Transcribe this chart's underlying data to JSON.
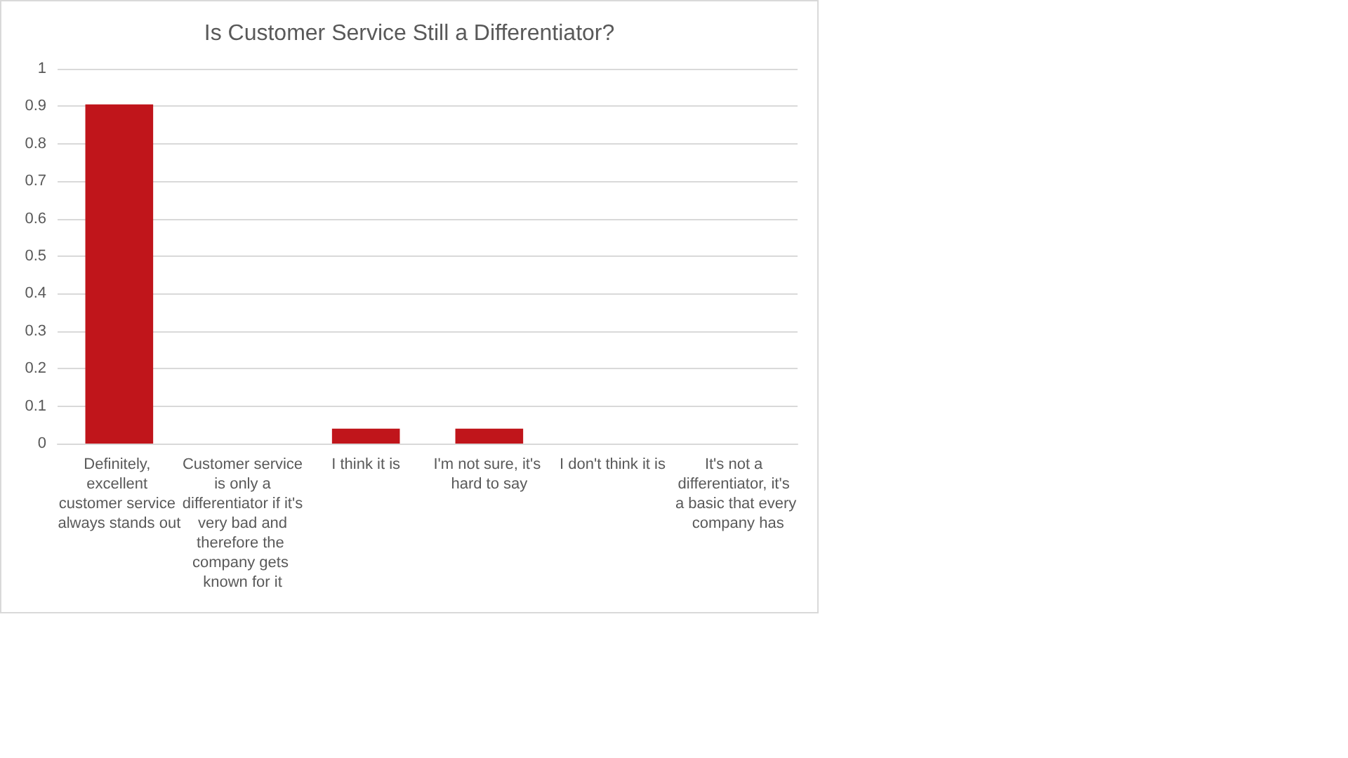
{
  "chart_data": {
    "type": "bar",
    "title": "Is Customer Service Still a Differentiator?",
    "categories": [
      "Definitely, excellent customer service always stands out",
      "Customer service is only a differentiator if it's very bad and therefore the company gets known for it",
      "I think it is",
      "I'm not sure, it's hard to say",
      "I don't think it is",
      "It's not a differentiator, it's a basic that every company has"
    ],
    "values": [
      0.905,
      0,
      0.04,
      0.04,
      0,
      0
    ],
    "color": "#c0151b",
    "ylim": [
      0,
      1
    ],
    "yticks": [
      0,
      0.1,
      0.2,
      0.3,
      0.4,
      0.5,
      0.6,
      0.7,
      0.8,
      0.9,
      1
    ],
    "grid": "y"
  }
}
